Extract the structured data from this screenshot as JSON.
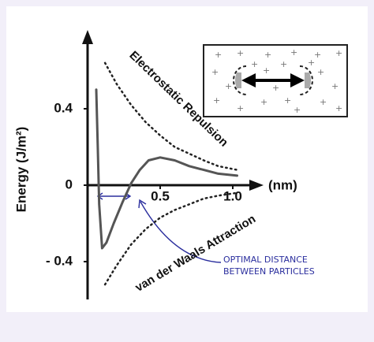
{
  "chart_data": {
    "type": "line",
    "xlabel": "(nm)",
    "ylabel": "Energy (J/m²)",
    "xlim": [
      0,
      1.15
    ],
    "ylim": [
      -0.58,
      0.78
    ],
    "xticks": [
      0.5,
      {
        "value": 1,
        "label": "1.0"
      }
    ],
    "yticks": [
      0.4,
      0,
      {
        "value": -0.4,
        "label": "- 0.4"
      }
    ],
    "annotation": [
      "OPTIMAL DISTANCE",
      "BETWEEN PARTICLES"
    ],
    "series": [
      {
        "color": "#555555",
        "x": [
          0.06,
          0.07,
          0.08,
          0.1,
          0.13,
          0.18,
          0.24,
          0.3,
          0.36,
          0.42,
          0.5,
          0.6,
          0.7,
          0.8,
          0.9,
          1.03
        ],
        "values": [
          0.5,
          0.2,
          -0.1,
          -0.33,
          -0.3,
          -0.2,
          -0.09,
          0.01,
          0.08,
          0.13,
          0.145,
          0.13,
          0.1,
          0.08,
          0.06,
          0.05
        ]
      },
      {
        "name": "Electrostatic Repulsion",
        "color": "#222222",
        "dotted": true,
        "x": [
          0.12,
          0.2,
          0.3,
          0.4,
          0.5,
          0.6,
          0.7,
          0.8,
          0.9,
          1.03
        ],
        "values": [
          0.64,
          0.53,
          0.42,
          0.33,
          0.26,
          0.2,
          0.165,
          0.13,
          0.1,
          0.08
        ]
      },
      {
        "name": "van der Waals Attraction",
        "color": "#222222",
        "dotted": true,
        "x": [
          0.12,
          0.2,
          0.3,
          0.4,
          0.5,
          0.6,
          0.7,
          0.8,
          0.9,
          1.03
        ],
        "values": [
          -0.52,
          -0.42,
          -0.31,
          -0.23,
          -0.17,
          -0.13,
          -0.1,
          -0.07,
          -0.055,
          -0.04
        ]
      }
    ]
  }
}
